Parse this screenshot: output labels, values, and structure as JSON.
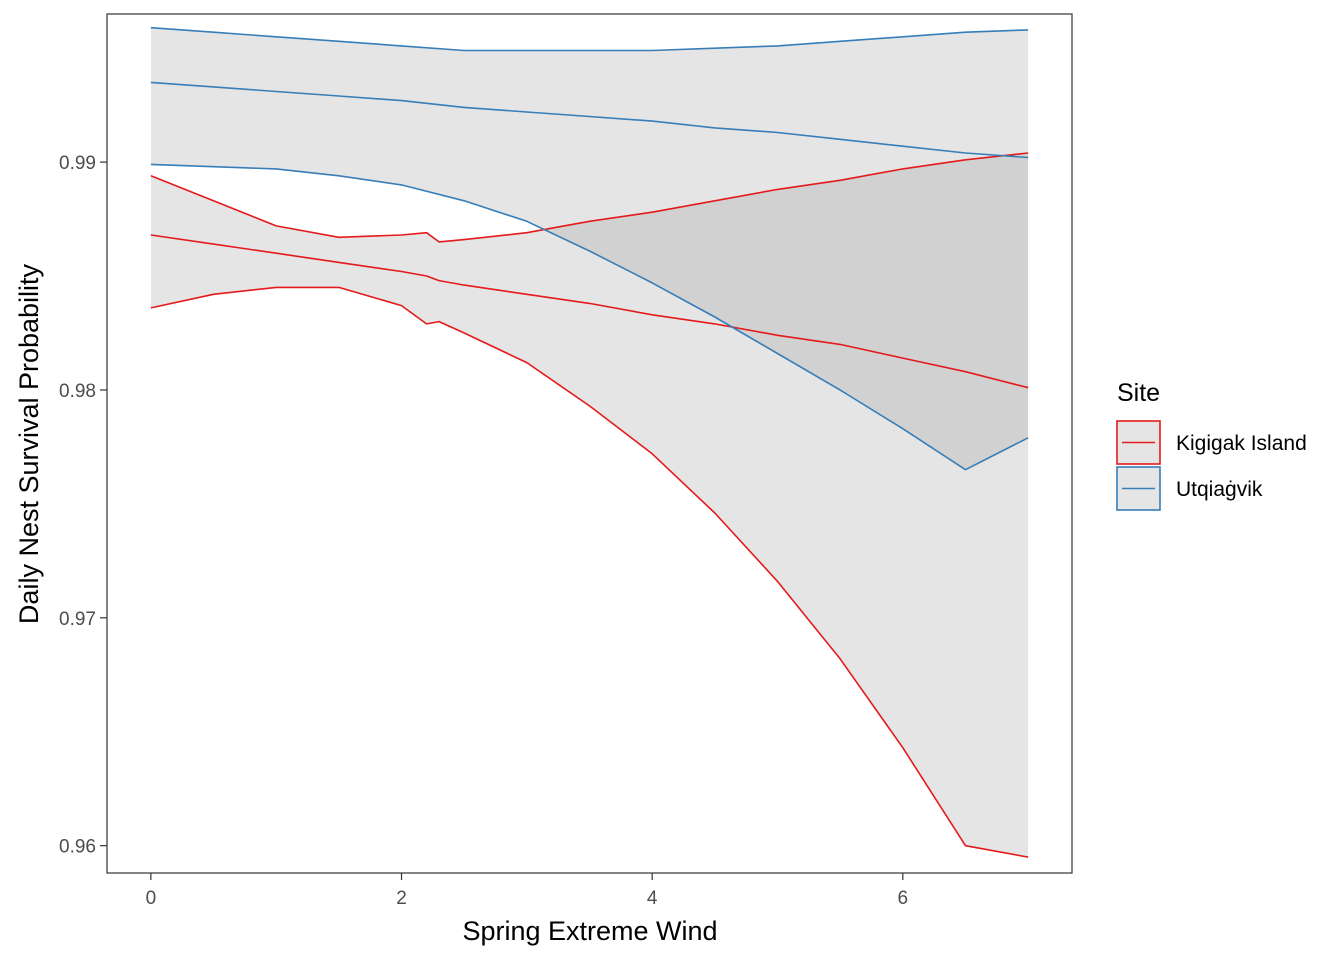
{
  "chart_data": {
    "type": "line",
    "xlabel": "Spring Extreme Wind",
    "ylabel": "Daily Nest Survival Probability",
    "xlim": [
      -0.35,
      7.35
    ],
    "ylim": [
      0.9588,
      0.9965
    ],
    "x_ticks": [
      0,
      2,
      4,
      6
    ],
    "x_tick_labels": [
      "0",
      "2",
      "4",
      "6"
    ],
    "y_ticks": [
      0.96,
      0.97,
      0.98,
      0.99
    ],
    "y_tick_labels": [
      "0.96",
      "0.97",
      "0.98",
      "0.99"
    ],
    "grid": false,
    "legend": {
      "title": "Site",
      "placement": "right"
    },
    "series": [
      {
        "name": "Kigigak Island",
        "color": "#E41A1C",
        "x": [
          0,
          0.5,
          1,
          1.5,
          2,
          2.2,
          2.3,
          2.5,
          3,
          3.5,
          4,
          4.5,
          5,
          5.5,
          6,
          6.5,
          7
        ],
        "fit": [
          0.9868,
          0.9864,
          0.986,
          0.9856,
          0.9852,
          0.985,
          0.9848,
          0.9846,
          0.9842,
          0.9838,
          0.9833,
          0.9829,
          0.9824,
          0.982,
          0.9814,
          0.9808,
          0.9801
        ],
        "lower": [
          0.9836,
          0.9842,
          0.9845,
          0.9845,
          0.9837,
          0.9829,
          0.983,
          0.9825,
          0.9812,
          0.9793,
          0.9772,
          0.9746,
          0.9716,
          0.9682,
          0.9643,
          0.96,
          0.9595
        ],
        "upper": [
          0.9894,
          0.9883,
          0.9872,
          0.9867,
          0.9868,
          0.9869,
          0.9865,
          0.9866,
          0.9869,
          0.9874,
          0.9878,
          0.9883,
          0.9888,
          0.9892,
          0.9897,
          0.9901,
          0.9904
        ]
      },
      {
        "name": "Utqiaġvik",
        "color": "#377EB8",
        "x": [
          0,
          0.5,
          1,
          1.5,
          2,
          2.5,
          3,
          3.5,
          4,
          4.5,
          5,
          5.5,
          6,
          6.5,
          7
        ],
        "fit": [
          0.9935,
          0.9933,
          0.9931,
          0.9929,
          0.9927,
          0.9924,
          0.9922,
          0.992,
          0.9918,
          0.9915,
          0.9913,
          0.991,
          0.9907,
          0.9904,
          0.9902
        ],
        "lower": [
          0.9899,
          0.9898,
          0.9897,
          0.9894,
          0.989,
          0.9883,
          0.9874,
          0.9861,
          0.9847,
          0.9832,
          0.9816,
          0.98,
          0.9783,
          0.9765,
          0.9779
        ],
        "upper": [
          0.9959,
          0.9957,
          0.9955,
          0.9953,
          0.9951,
          0.9949,
          0.9949,
          0.9949,
          0.9949,
          0.995,
          0.9951,
          0.9953,
          0.9955,
          0.9957,
          0.9958
        ]
      }
    ]
  }
}
